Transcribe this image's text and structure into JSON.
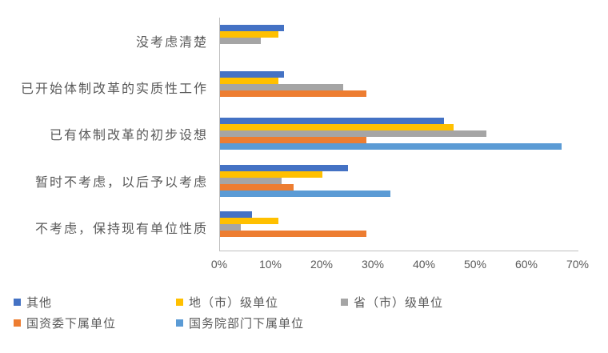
{
  "chart_data": {
    "type": "bar",
    "orientation": "horizontal",
    "title": "",
    "xlabel": "",
    "ylabel": "",
    "xlim": [
      0,
      70
    ],
    "x_ticks": [
      "0%",
      "10%",
      "20%",
      "30%",
      "40%",
      "50%",
      "60%",
      "70%"
    ],
    "gridlines": false,
    "legend_position": "bottom-left",
    "categories": [
      "没考虑清楚",
      "已开始体制改革的实质性工作",
      "已有体制改革的初步设想",
      "暂时不考虑，以后予以考虑",
      "不考虑，保持现有单位性质"
    ],
    "series": [
      {
        "name": "其他",
        "color": "#4472C4",
        "values": [
          12.5,
          12.5,
          43.8,
          25.0,
          6.3
        ]
      },
      {
        "name": "地（市）级单位",
        "color": "#FFC000",
        "values": [
          11.4,
          11.4,
          45.7,
          20.0,
          11.4
        ]
      },
      {
        "name": "省（市）级单位",
        "color": "#A5A5A5",
        "values": [
          8.0,
          24.0,
          52.0,
          12.0,
          4.0
        ]
      },
      {
        "name": "国资委下属单位",
        "color": "#ED7D31",
        "values": [
          0,
          28.6,
          28.6,
          14.3,
          28.6
        ]
      },
      {
        "name": "国务院部门下属单位",
        "color": "#5B9BD5",
        "values": [
          0,
          0,
          66.7,
          33.3,
          0
        ]
      }
    ],
    "colors": {
      "axis_line": "#BFBFBF",
      "label_text": "#595959",
      "background": "#FFFFFF"
    }
  }
}
